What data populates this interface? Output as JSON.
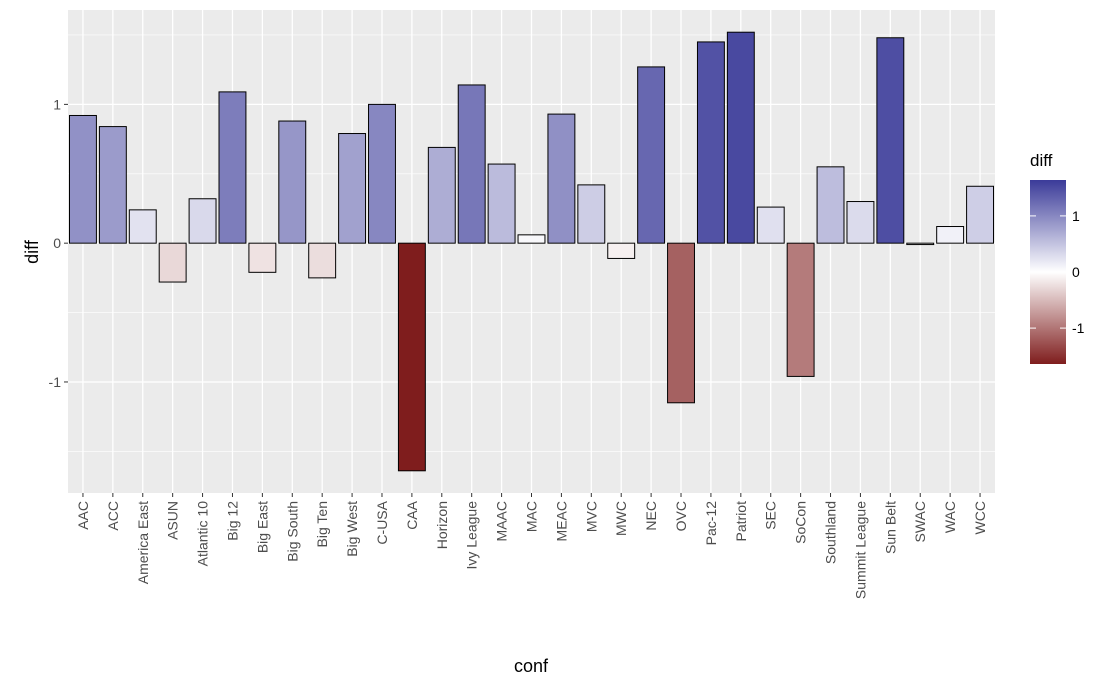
{
  "chart_data": {
    "type": "bar",
    "title": "",
    "xlabel": "conf",
    "ylabel": "diff",
    "ylim": [
      -1.8,
      1.68
    ],
    "y_ticks": [
      -1,
      0,
      1
    ],
    "y_tick_labels": [
      "-1",
      "0",
      "1"
    ],
    "grid": true,
    "panel_background": "#ebebeb",
    "grid_color": "#ffffff",
    "categories": [
      "AAC",
      "ACC",
      "America East",
      "ASUN",
      "Atlantic 10",
      "Big 12",
      "Big East",
      "Big South",
      "Big Ten",
      "Big West",
      "C-USA",
      "CAA",
      "Horizon",
      "Ivy League",
      "MAAC",
      "MAC",
      "MEAC",
      "MVC",
      "MWC",
      "NEC",
      "OVC",
      "Pac-12",
      "Patriot",
      "SEC",
      "SoCon",
      "Southland",
      "Summit League",
      "Sun Belt",
      "SWAC",
      "WAC",
      "WCC"
    ],
    "values": [
      0.92,
      0.84,
      0.24,
      -0.28,
      0.32,
      1.09,
      -0.21,
      0.88,
      -0.25,
      0.79,
      1.0,
      -1.64,
      0.69,
      1.14,
      0.57,
      0.06,
      0.93,
      0.42,
      -0.11,
      1.27,
      -1.15,
      1.45,
      1.52,
      0.26,
      -0.96,
      0.55,
      0.3,
      1.48,
      -0.01,
      0.12,
      0.41
    ],
    "bar_outline": "#000000",
    "legend": {
      "title": "diff",
      "position": "right",
      "ticks": [
        1,
        0,
        -1
      ],
      "tick_labels": [
        "1",
        "0",
        "-1"
      ],
      "range": [
        -1.64,
        1.64
      ]
    },
    "colors": {
      "low": "#7f1d1d",
      "mid": "#ffffff",
      "high": "#3b3b99"
    }
  }
}
